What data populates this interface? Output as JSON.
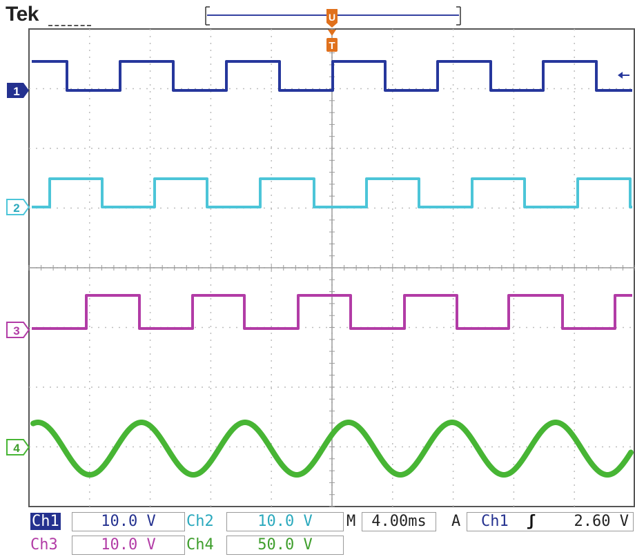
{
  "header": {
    "brand": "Tek"
  },
  "markers": {
    "trigger_top": "U",
    "trigger_mid": "T"
  },
  "channels": [
    {
      "id": "1",
      "color": "#26379c"
    },
    {
      "id": "2",
      "color": "#4cc5d8"
    },
    {
      "id": "3",
      "color": "#b23ca6"
    },
    {
      "id": "4",
      "color": "#47b534"
    }
  ],
  "readouts": {
    "ch1": {
      "label": "Ch1",
      "value": "10.0 V"
    },
    "ch2": {
      "label": "Ch2",
      "value": "10.0 V"
    },
    "ch3": {
      "label": "Ch3",
      "value": "10.0 V"
    },
    "ch4": {
      "label": "Ch4",
      "value": "50.0 V"
    },
    "timebase": {
      "label": "M",
      "value": "4.00ms"
    },
    "trigger": {
      "label": "A",
      "source": "Ch1",
      "slope": "ʃ",
      "level": "2.60 V"
    }
  },
  "colors": {
    "grid": "#bcbcbc",
    "frame": "#555555",
    "trigger_marker": "#e0711d"
  }
}
